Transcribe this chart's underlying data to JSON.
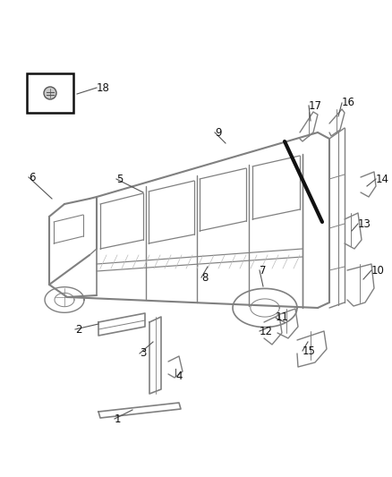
{
  "bg_color": "#ffffff",
  "lc": "#808080",
  "dc": "#111111",
  "mc": "#555555",
  "fig_width": 4.38,
  "fig_height": 5.33,
  "dpi": 100
}
